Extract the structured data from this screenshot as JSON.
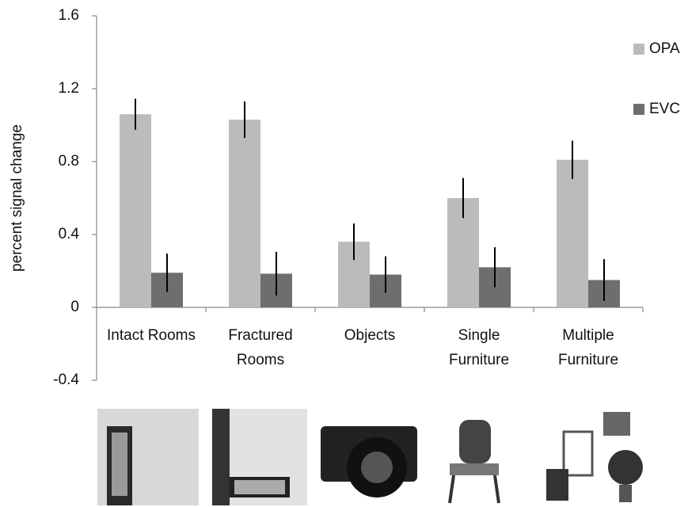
{
  "chart_data": {
    "type": "bar",
    "y_label": "percent signal change",
    "categories": [
      "Intact Rooms",
      "Fractured Rooms",
      "Objects",
      "Single Furniture",
      "Multiple Furniture"
    ],
    "series": [
      {
        "name": "OPA",
        "color": "#bbbbbb",
        "values": [
          1.06,
          1.03,
          0.36,
          0.6,
          0.81
        ],
        "errors": [
          0.085,
          0.1,
          0.1,
          0.11,
          0.105
        ]
      },
      {
        "name": "EVC",
        "color": "#6e6e6e",
        "values": [
          0.19,
          0.185,
          0.18,
          0.22,
          0.15
        ],
        "errors": [
          0.105,
          0.12,
          0.1,
          0.11,
          0.115
        ]
      }
    ],
    "ylim": [
      -0.4,
      1.6
    ],
    "yticks": [
      -0.4,
      0,
      0.4,
      0.8,
      1.2,
      1.6
    ],
    "grid": false,
    "legend": "right"
  }
}
